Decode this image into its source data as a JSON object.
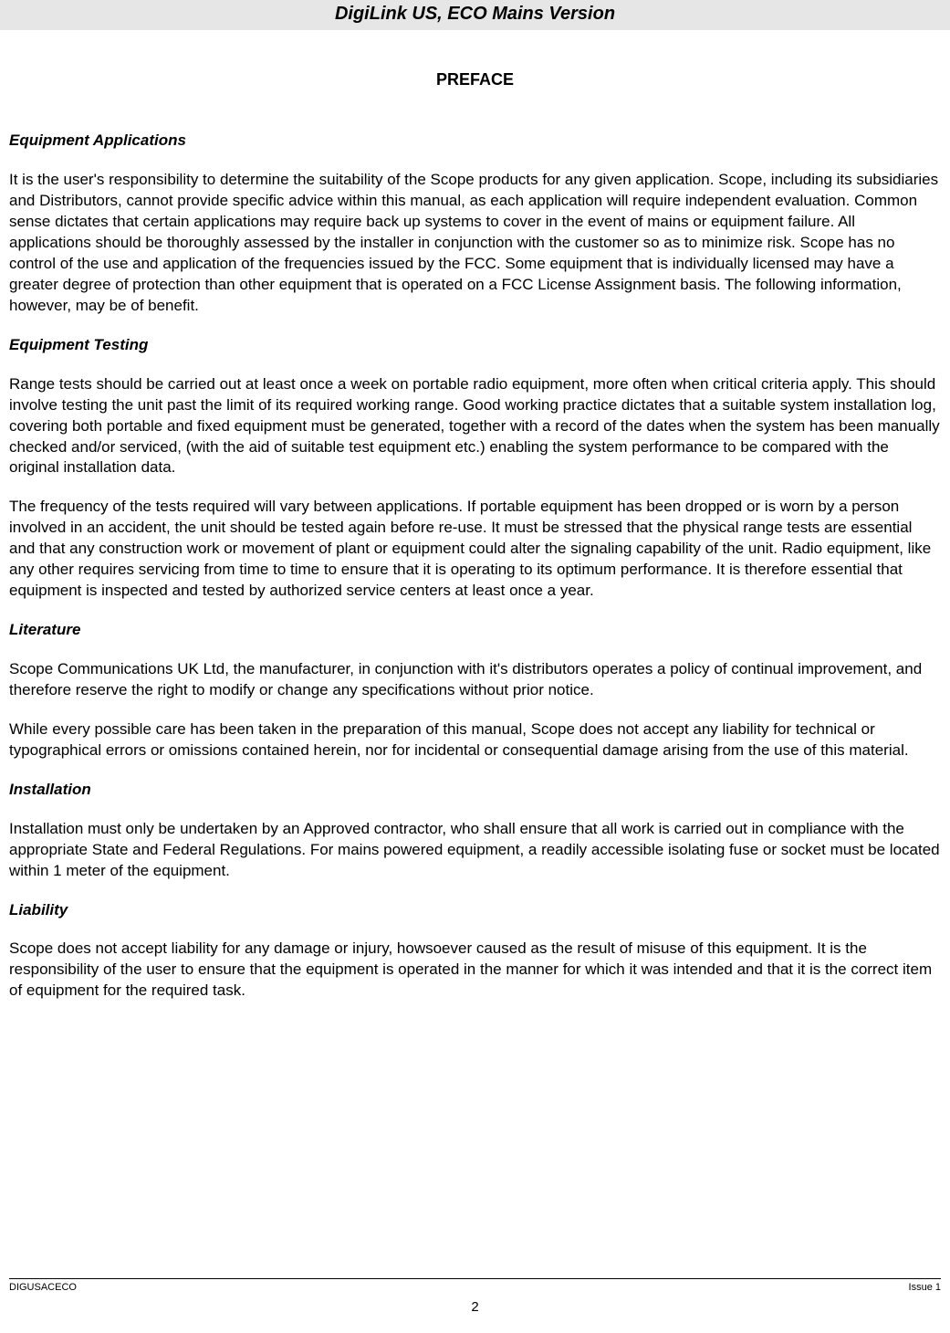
{
  "header": {
    "title": "DigiLink  US, ECO  Mains Version"
  },
  "preface": {
    "title": "PREFACE"
  },
  "sections": {
    "equipment_applications": {
      "heading": "Equipment Applications",
      "p1": "It is the user's responsibility to determine the suitability of the Scope products for any given application.  Scope, including its subsidiaries and Distributors, cannot provide specific advice within this manual, as each application will require independent evaluation.  Common sense dictates that certain applications may require back up systems to cover in the event of mains or equipment failure. All applications should be thoroughly assessed by the installer in conjunction with the customer so as to minimize risk. Scope has no control of the use and application of the frequencies issued by the FCC.  Some equipment that is individually licensed may have a greater degree of protection than other equipment that is operated on a FCC License Assignment basis. The following information, however, may be of benefit."
    },
    "equipment_testing": {
      "heading": "Equipment Testing",
      "p1": "Range tests should be carried out at least once a week on portable radio equipment, more often when critical criteria apply. This should involve testing the unit past the limit of its required working range. Good working practice dictates that a suitable system installation log, covering both portable and fixed equipment must be generated, together with a record of the dates when the system has been manually checked and/or serviced, (with the aid of suitable test equipment etc.) enabling the system performance to be compared with the original installation data.",
      "p2": "The frequency of the tests required will vary between applications.  If portable equipment has been dropped or is worn by a person involved in an accident, the unit should be tested again before re-use.  It must be stressed that the physical range tests are essential and that any construction work or movement of plant or equipment could alter the signaling capability of the unit. Radio equipment, like any other requires servicing from time to time to ensure that it is operating to its optimum performance. It is therefore essential that equipment is inspected and tested by authorized service centers at least once a year."
    },
    "literature": {
      "heading": "Literature",
      "p1": "Scope Communications UK Ltd, the manufacturer, in conjunction with it's distributors operates a policy of continual improvement, and therefore reserve the right to modify or change any specifications without prior notice.",
      "p2": "While every possible care has been taken in the preparation of this manual, Scope does not accept any liability for technical or typographical errors or omissions contained herein, nor for incidental or consequential damage arising from the use of this material."
    },
    "installation": {
      "heading": "Installation",
      "p1": "Installation must only be undertaken by an Approved contractor, who shall ensure that all work is carried out in compliance with the appropriate State and Federal Regulations. For mains powered equipment, a readily accessible isolating fuse or socket must be located within 1 meter of the equipment."
    },
    "liability": {
      "heading": "Liability",
      "p1": "Scope does not accept liability for any damage or injury, howsoever caused as the result of misuse of this equipment. It is the responsibility of the user to ensure that the equipment is operated in the manner for which it was intended and that it is the correct item of equipment for the required task."
    }
  },
  "footer": {
    "left": "DIGUSACECO",
    "right": "Issue 1",
    "page": "2"
  }
}
